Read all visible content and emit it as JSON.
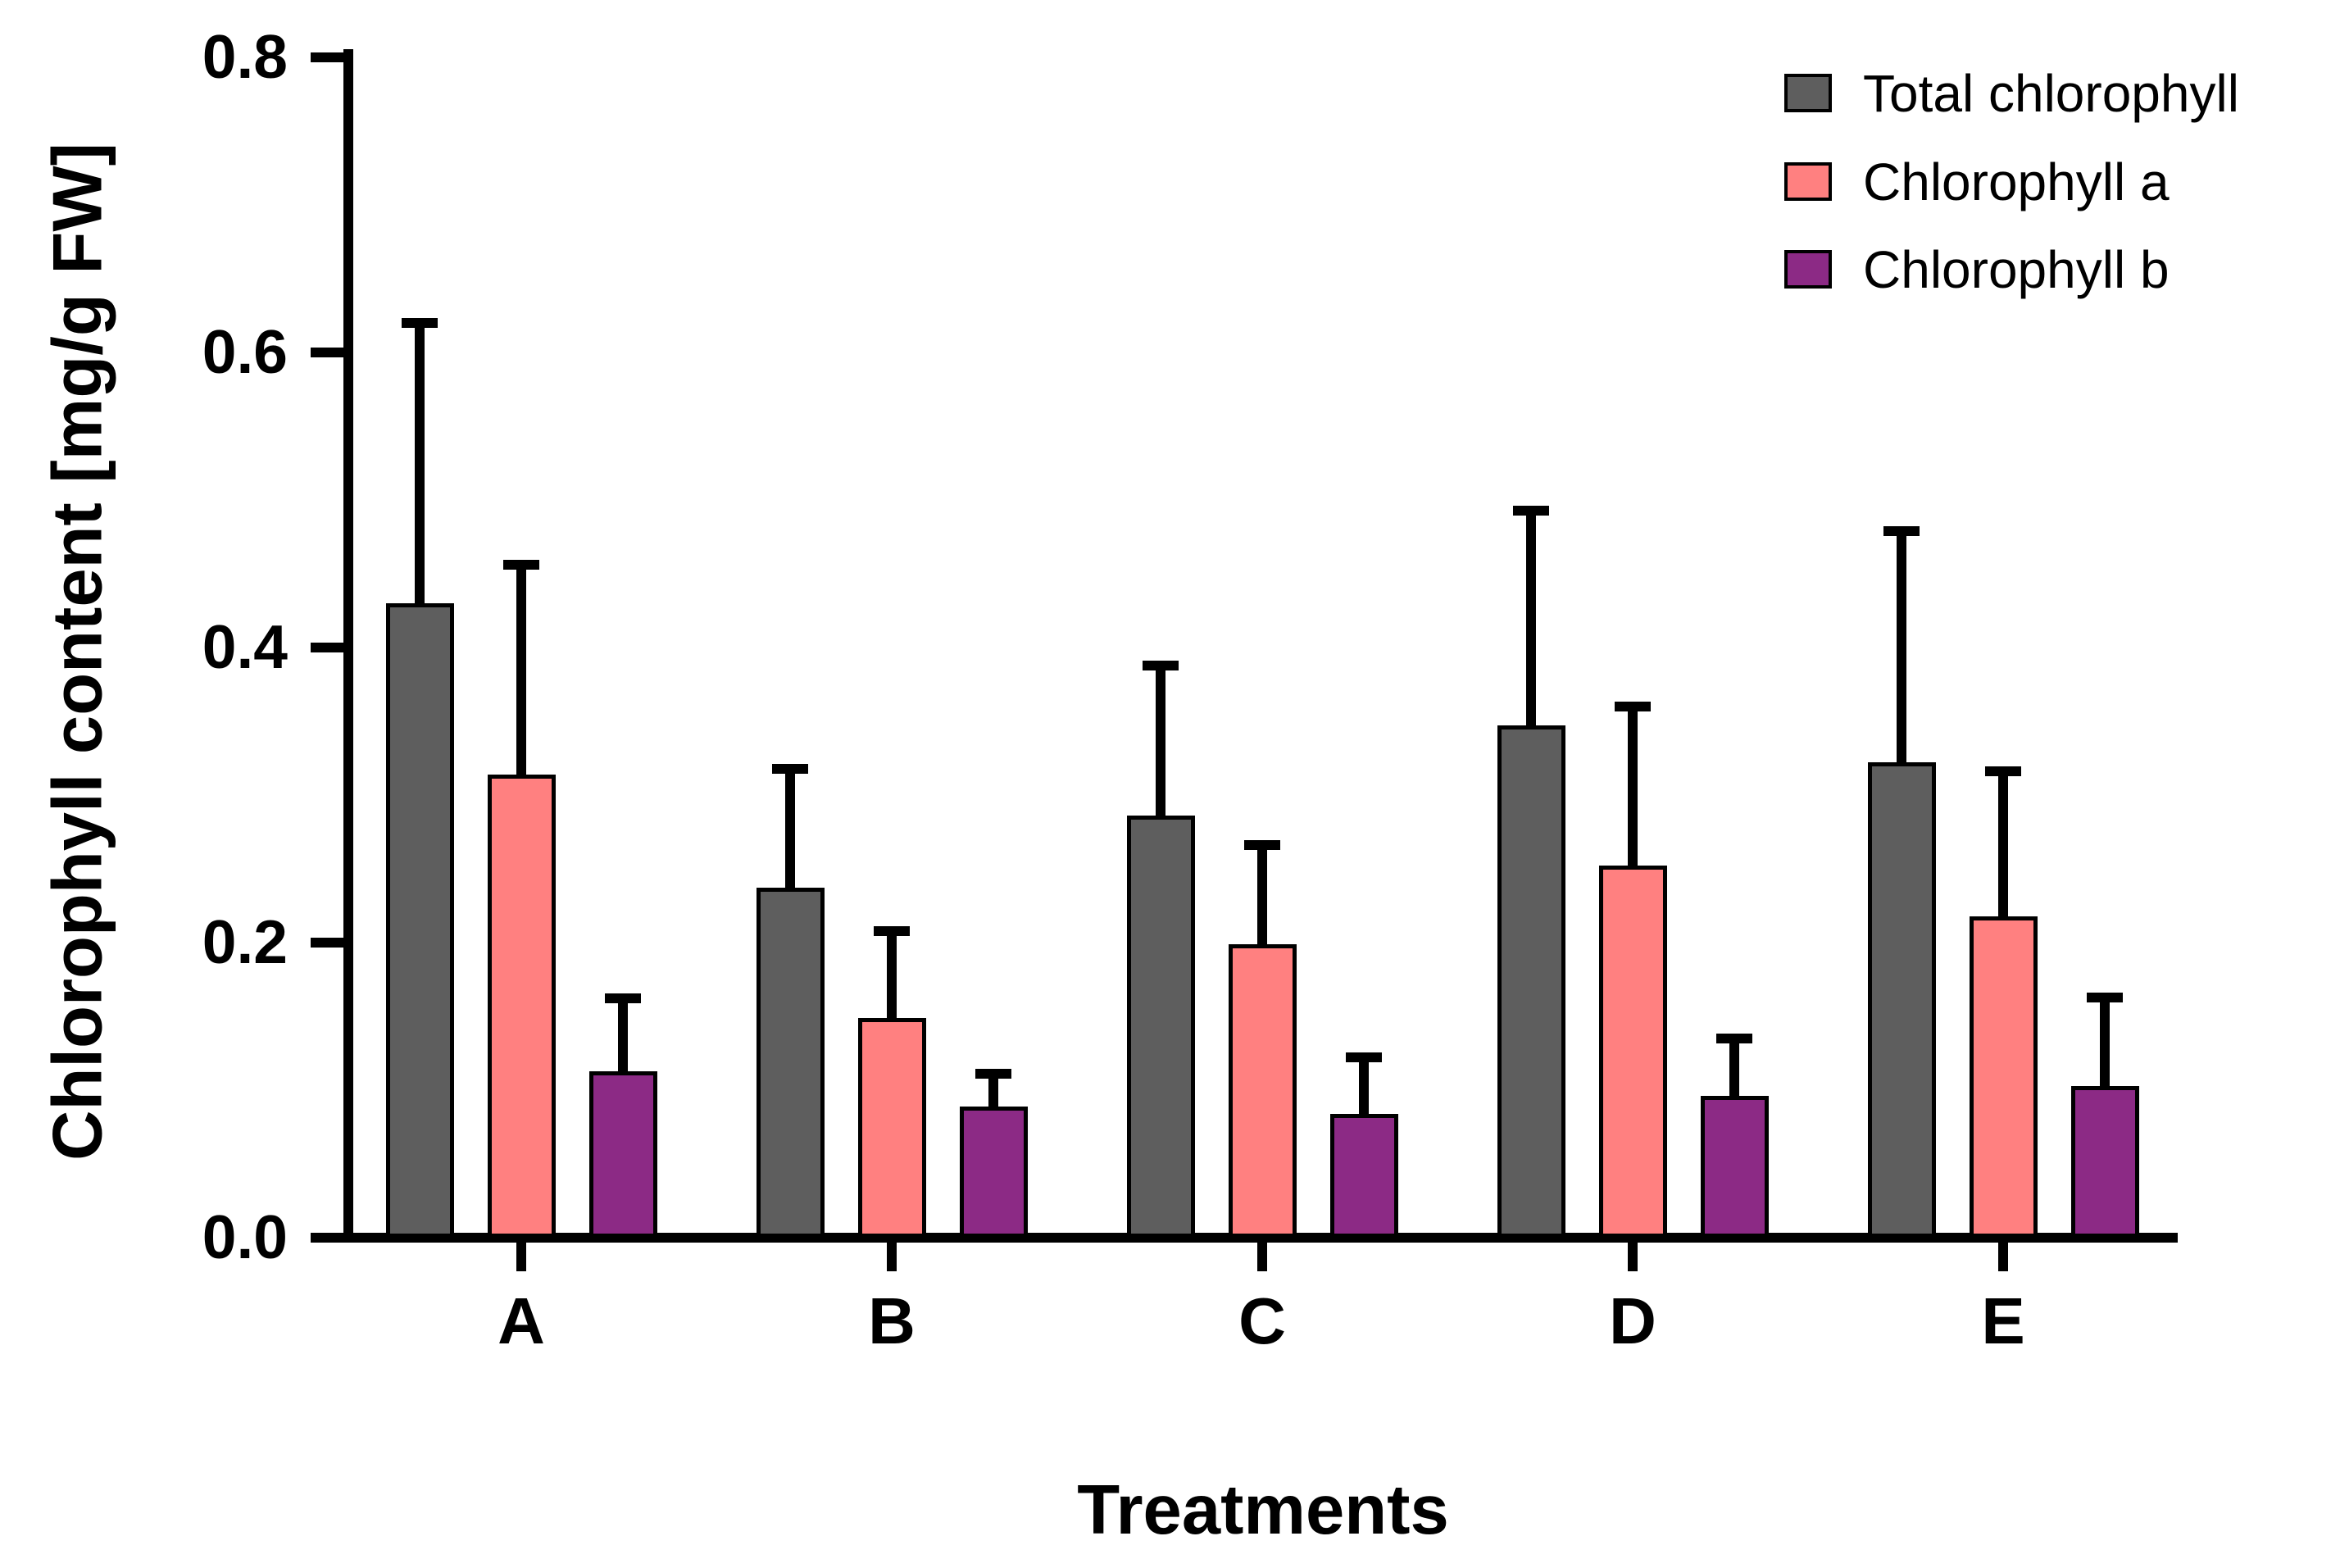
{
  "chart_data": {
    "type": "bar",
    "title": "",
    "xlabel": "Treatments",
    "ylabel": "Chlorophyll content [mg/g FW]",
    "categories": [
      "A",
      "B",
      "C",
      "D",
      "E"
    ],
    "series": [
      {
        "name": "Total chlorophyll",
        "color": "#5E5E5E",
        "values": [
          0.43,
          0.237,
          0.286,
          0.347,
          0.322
        ],
        "errors_plus": [
          0.19,
          0.081,
          0.102,
          0.146,
          0.157
        ]
      },
      {
        "name": "Chlorophyll a",
        "color": "#FF8080",
        "values": [
          0.314,
          0.149,
          0.199,
          0.252,
          0.218
        ],
        "errors_plus": [
          0.142,
          0.059,
          0.067,
          0.108,
          0.098
        ]
      },
      {
        "name": "Chlorophyll b",
        "color": "#8C2A85",
        "values": [
          0.113,
          0.089,
          0.084,
          0.096,
          0.103
        ],
        "errors_plus": [
          0.049,
          0.022,
          0.038,
          0.039,
          0.06
        ]
      }
    ],
    "ylim": [
      0.0,
      0.8
    ],
    "y_ticks": [
      "0.0",
      "0.2",
      "0.4",
      "0.6",
      "0.8"
    ],
    "grid": false,
    "legend_position": "top-right",
    "error_bars": "upper-only",
    "bar_outline_color": "#000000",
    "background_color": "#FFFFFF"
  }
}
